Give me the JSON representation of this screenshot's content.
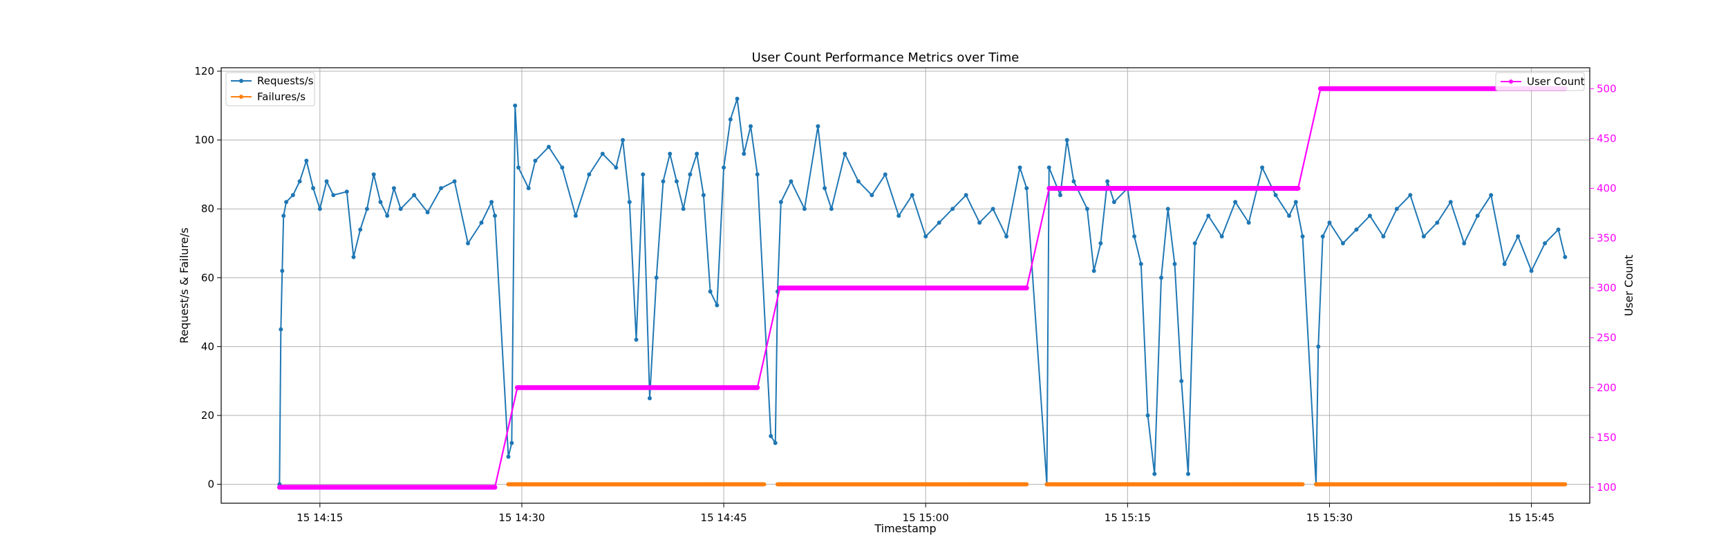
{
  "chart_data": {
    "type": "line",
    "title": "User Count Performance Metrics over Time",
    "xlabel": "Timestamp",
    "ylabel": "Request/s & Failure/s",
    "y2label": "User Count",
    "x_range": [
      "15 14:07:40",
      "15 15:49:20"
    ],
    "ylim": [
      -5.5,
      121
    ],
    "y2lim": [
      84,
      521
    ],
    "grid": true,
    "x_ticks": [
      {
        "t": "15 14:15",
        "label": "15 14:15"
      },
      {
        "t": "15 14:30",
        "label": "15 14:30"
      },
      {
        "t": "15 14:45",
        "label": "15 14:45"
      },
      {
        "t": "15 15:00",
        "label": "15 15:00"
      },
      {
        "t": "15 15:15",
        "label": "15 15:15"
      },
      {
        "t": "15 15:30",
        "label": "15 15:30"
      },
      {
        "t": "15 15:45",
        "label": "15 15:45"
      }
    ],
    "y_ticks": [
      0,
      20,
      40,
      60,
      80,
      100,
      120
    ],
    "y2_ticks": [
      100,
      150,
      200,
      250,
      300,
      350,
      400,
      450,
      500
    ],
    "legend_left": {
      "placement": "upper-left",
      "entries": [
        "Requests/s",
        "Failures/s"
      ]
    },
    "legend_right": {
      "placement": "upper-right",
      "entries": [
        "User Count"
      ]
    },
    "colors": {
      "requests": "#1f77b4",
      "failures": "#ff7f0e",
      "users": "#ff00ff",
      "grid": "#b0b0b0"
    },
    "series": [
      {
        "name": "Requests/s",
        "axis": "left",
        "color": "#1f77b4",
        "points": [
          [
            "15 14:12:00",
            0
          ],
          [
            "15 14:12:06",
            45
          ],
          [
            "15 14:12:12",
            62
          ],
          [
            "15 14:12:18",
            78
          ],
          [
            "15 14:12:30",
            82
          ],
          [
            "15 14:13:00",
            84
          ],
          [
            "15 14:13:30",
            88
          ],
          [
            "15 14:14:00",
            94
          ],
          [
            "15 14:14:30",
            86
          ],
          [
            "15 14:15:00",
            80
          ],
          [
            "15 14:15:30",
            88
          ],
          [
            "15 14:16:00",
            84
          ],
          [
            "15 14:17:00",
            85
          ],
          [
            "15 14:17:30",
            66
          ],
          [
            "15 14:18:00",
            74
          ],
          [
            "15 14:18:30",
            80
          ],
          [
            "15 14:19:00",
            90
          ],
          [
            "15 14:19:30",
            82
          ],
          [
            "15 14:20:00",
            78
          ],
          [
            "15 14:20:30",
            86
          ],
          [
            "15 14:21:00",
            80
          ],
          [
            "15 14:22:00",
            84
          ],
          [
            "15 14:23:00",
            79
          ],
          [
            "15 14:24:00",
            86
          ],
          [
            "15 14:25:00",
            88
          ],
          [
            "15 14:26:00",
            70
          ],
          [
            "15 14:27:00",
            76
          ],
          [
            "15 14:27:45",
            82
          ],
          [
            "15 14:28:00",
            78
          ],
          [
            "15 14:29:00",
            8
          ],
          [
            "15 14:29:15",
            12
          ],
          [
            "15 14:29:30",
            110
          ],
          [
            "15 14:29:45",
            92
          ],
          [
            "15 14:30:30",
            86
          ],
          [
            "15 14:31:00",
            94
          ],
          [
            "15 14:32:00",
            98
          ],
          [
            "15 14:33:00",
            92
          ],
          [
            "15 14:34:00",
            78
          ],
          [
            "15 14:35:00",
            90
          ],
          [
            "15 14:36:00",
            96
          ],
          [
            "15 14:37:00",
            92
          ],
          [
            "15 14:37:30",
            100
          ],
          [
            "15 14:38:00",
            82
          ],
          [
            "15 14:38:30",
            42
          ],
          [
            "15 14:39:00",
            90
          ],
          [
            "15 14:39:30",
            25
          ],
          [
            "15 14:40:00",
            60
          ],
          [
            "15 14:40:30",
            88
          ],
          [
            "15 14:41:00",
            96
          ],
          [
            "15 14:41:30",
            88
          ],
          [
            "15 14:42:00",
            80
          ],
          [
            "15 14:42:30",
            90
          ],
          [
            "15 14:43:00",
            96
          ],
          [
            "15 14:43:30",
            84
          ],
          [
            "15 14:44:00",
            56
          ],
          [
            "15 14:44:30",
            52
          ],
          [
            "15 14:45:00",
            92
          ],
          [
            "15 14:45:30",
            106
          ],
          [
            "15 14:46:00",
            112
          ],
          [
            "15 14:46:30",
            96
          ],
          [
            "15 14:47:00",
            104
          ],
          [
            "15 14:47:30",
            90
          ],
          [
            "15 14:48:30",
            14
          ],
          [
            "15 14:48:50",
            12
          ],
          [
            "15 14:49:00",
            56
          ],
          [
            "15 14:49:15",
            82
          ],
          [
            "15 14:50:00",
            88
          ],
          [
            "15 14:51:00",
            80
          ],
          [
            "15 14:52:00",
            104
          ],
          [
            "15 14:52:30",
            86
          ],
          [
            "15 14:53:00",
            80
          ],
          [
            "15 14:54:00",
            96
          ],
          [
            "15 14:55:00",
            88
          ],
          [
            "15 14:56:00",
            84
          ],
          [
            "15 14:57:00",
            90
          ],
          [
            "15 14:58:00",
            78
          ],
          [
            "15 14:59:00",
            84
          ],
          [
            "15 15:00:00",
            72
          ],
          [
            "15 15:01:00",
            76
          ],
          [
            "15 15:02:00",
            80
          ],
          [
            "15 15:03:00",
            84
          ],
          [
            "15 15:04:00",
            76
          ],
          [
            "15 15:05:00",
            80
          ],
          [
            "15 15:06:00",
            72
          ],
          [
            "15 15:07:00",
            92
          ],
          [
            "15 15:07:30",
            86
          ],
          [
            "15 15:09:00",
            0
          ],
          [
            "15 15:09:10",
            92
          ],
          [
            "15 15:10:00",
            84
          ],
          [
            "15 15:10:30",
            100
          ],
          [
            "15 15:11:00",
            88
          ],
          [
            "15 15:12:00",
            80
          ],
          [
            "15 15:12:30",
            62
          ],
          [
            "15 15:13:00",
            70
          ],
          [
            "15 15:13:30",
            88
          ],
          [
            "15 15:14:00",
            82
          ],
          [
            "15 15:15:00",
            86
          ],
          [
            "15 15:15:30",
            72
          ],
          [
            "15 15:16:00",
            64
          ],
          [
            "15 15:16:30",
            20
          ],
          [
            "15 15:17:00",
            3
          ],
          [
            "15 15:17:30",
            60
          ],
          [
            "15 15:18:00",
            80
          ],
          [
            "15 15:18:30",
            64
          ],
          [
            "15 15:19:00",
            30
          ],
          [
            "15 15:19:30",
            3
          ],
          [
            "15 15:20:00",
            70
          ],
          [
            "15 15:21:00",
            78
          ],
          [
            "15 15:22:00",
            72
          ],
          [
            "15 15:23:00",
            82
          ],
          [
            "15 15:24:00",
            76
          ],
          [
            "15 15:25:00",
            92
          ],
          [
            "15 15:26:00",
            84
          ],
          [
            "15 15:27:00",
            78
          ],
          [
            "15 15:27:30",
            82
          ],
          [
            "15 15:28:00",
            72
          ],
          [
            "15 15:29:00",
            0
          ],
          [
            "15 15:29:10",
            40
          ],
          [
            "15 15:29:30",
            72
          ],
          [
            "15 15:30:00",
            76
          ],
          [
            "15 15:31:00",
            70
          ],
          [
            "15 15:32:00",
            74
          ],
          [
            "15 15:33:00",
            78
          ],
          [
            "15 15:34:00",
            72
          ],
          [
            "15 15:35:00",
            80
          ],
          [
            "15 15:36:00",
            84
          ],
          [
            "15 15:37:00",
            72
          ],
          [
            "15 15:38:00",
            76
          ],
          [
            "15 15:39:00",
            82
          ],
          [
            "15 15:40:00",
            70
          ],
          [
            "15 15:41:00",
            78
          ],
          [
            "15 15:42:00",
            84
          ],
          [
            "15 15:43:00",
            64
          ],
          [
            "15 15:44:00",
            72
          ],
          [
            "15 15:45:00",
            62
          ],
          [
            "15 15:46:00",
            70
          ],
          [
            "15 15:47:00",
            74
          ],
          [
            "15 15:47:30",
            66
          ]
        ]
      },
      {
        "name": "Failures/s",
        "axis": "left",
        "color": "#ff7f0e",
        "segments": [
          [
            [
              "15 14:29:00",
              0
            ],
            [
              "15 14:48:00",
              0
            ]
          ],
          [
            [
              "15 14:49:00",
              0
            ],
            [
              "15 15:07:30",
              0
            ]
          ],
          [
            [
              "15 15:09:00",
              0
            ],
            [
              "15 15:28:00",
              0
            ]
          ],
          [
            [
              "15 15:29:00",
              0
            ],
            [
              "15 15:47:30",
              0
            ]
          ]
        ]
      },
      {
        "name": "User Count",
        "axis": "right",
        "color": "#ff00ff",
        "points": [
          [
            "15 14:12:00",
            100
          ],
          [
            "15 14:28:00",
            100
          ],
          [
            "15 14:29:40",
            200
          ],
          [
            "15 14:47:30",
            200
          ],
          [
            "15 14:49:10",
            300
          ],
          [
            "15 15:07:30",
            300
          ],
          [
            "15 15:09:10",
            400
          ],
          [
            "15 15:27:40",
            400
          ],
          [
            "15 15:29:20",
            500
          ],
          [
            "15 15:47:30",
            500
          ]
        ]
      }
    ]
  }
}
